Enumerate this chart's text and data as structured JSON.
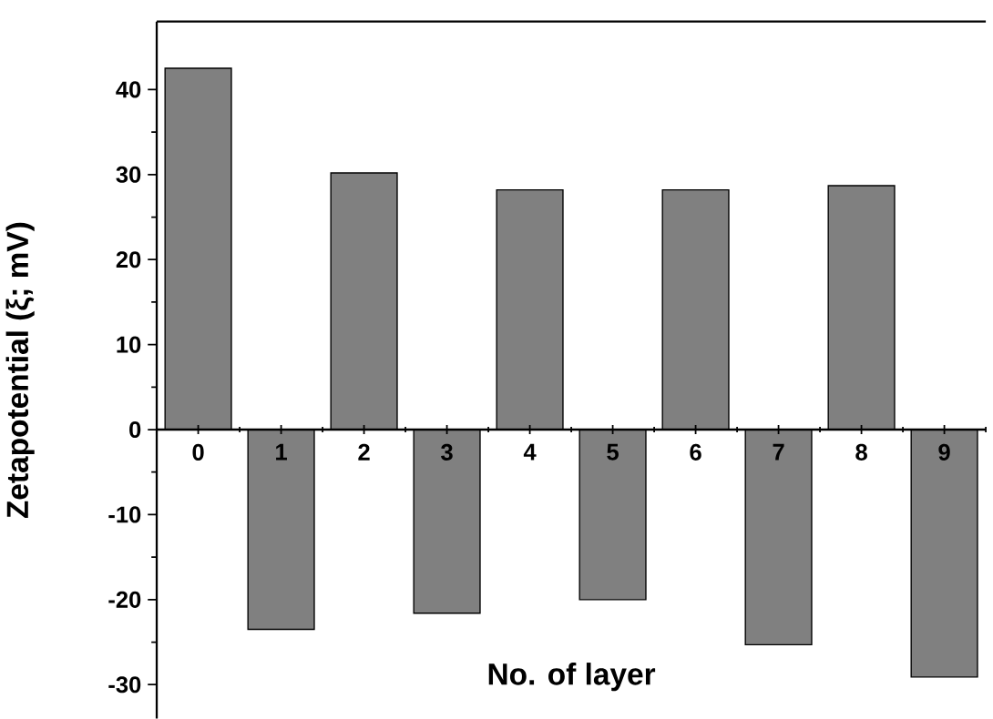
{
  "chart_data": {
    "type": "bar",
    "xlabel": "No. of layer",
    "ylabel": "Zetapotential (ξ; mV)",
    "categories": [
      "0",
      "1",
      "2",
      "3",
      "4",
      "5",
      "6",
      "7",
      "8",
      "9"
    ],
    "values": [
      42.5,
      -23.5,
      30.2,
      -21.6,
      28.2,
      -20,
      28.2,
      -25.3,
      28.7,
      -29.1
    ],
    "color": "#808080",
    "ylim": [
      -34,
      48
    ],
    "yticks": [
      -30,
      -20,
      -10,
      0,
      10,
      20,
      30,
      40
    ],
    "grid": false
  }
}
